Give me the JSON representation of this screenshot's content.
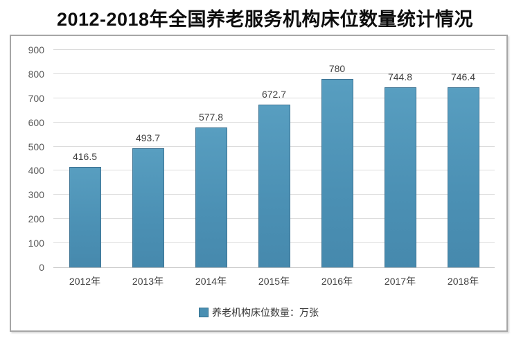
{
  "page": {
    "title": "2012-2018年全国养老服务机构床位数量统计情况"
  },
  "chart_data": {
    "type": "bar",
    "title": "2012-2018年全国养老服务机构床位数量统计情况",
    "categories": [
      "2012年",
      "2013年",
      "2014年",
      "2015年",
      "2016年",
      "2017年",
      "2018年"
    ],
    "values": [
      416.5,
      493.7,
      577.8,
      672.7,
      780,
      744.8,
      746.4
    ],
    "value_labels": [
      "416.5",
      "493.7",
      "577.8",
      "672.7",
      "780",
      "744.8",
      "746.4"
    ],
    "series_name": "养老机构床位数量：万张",
    "xlabel": "",
    "ylabel": "",
    "ylim": [
      0,
      900
    ],
    "yticks": [
      0,
      100,
      200,
      300,
      400,
      500,
      600,
      700,
      800,
      900
    ],
    "grid": true,
    "legend_position": "bottom",
    "colors": {
      "bar_fill": "#4b90b4",
      "bar_border": "#3c7292",
      "gridline": "#dcdcdc",
      "axis_text": "#595959",
      "baseline": "#bfbfbf",
      "panel_border": "#a6a6a6"
    }
  }
}
